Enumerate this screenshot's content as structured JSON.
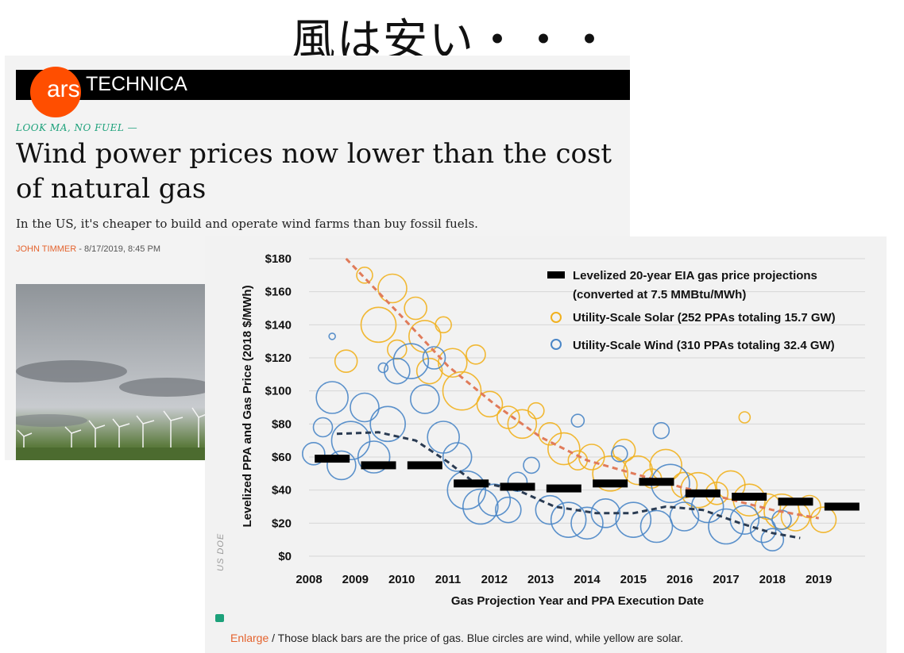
{
  "slide": {
    "title": "風は安い・・・"
  },
  "site": {
    "logo_ars": "ars",
    "logo_technica": "TECHNICA"
  },
  "article": {
    "kicker": "LOOK MA, NO FUEL —",
    "headline": "Wind power prices now lower than the cost of natural gas",
    "subhead": "In the US, it's cheaper to build and operate wind farms than buy fossil fuels.",
    "author": "JOHN TIMMER",
    "date": " - 8/17/2019, 8:45 PM"
  },
  "figure": {
    "credit": "US DOE",
    "enlarge": "Enlarge",
    "caption": " / Those black bars are the price of gas. Blue circles are wind, while yellow are solar."
  },
  "colors": {
    "solar": "#f1b11f",
    "wind": "#4a86c7",
    "gas": "#000000",
    "trend_solar": "#e07b5a",
    "trend_wind": "#2a3b52",
    "accent": "#ff4e00",
    "kicker": "#1ca17a"
  },
  "chart_data": {
    "type": "scatter",
    "ylabel": "Levelized PPA and Gas Price (2018 $/MWh)",
    "xlabel": "Gas Projection Year and PPA Execution Date",
    "x_ticks": [
      "2008",
      "2009",
      "2010",
      "2011",
      "2012",
      "2013",
      "2014",
      "2015",
      "2016",
      "2017",
      "2018",
      "2019"
    ],
    "y_ticks": [
      "$0",
      "$20",
      "$40",
      "$60",
      "$80",
      "$100",
      "$120",
      "$140",
      "$160",
      "$180"
    ],
    "xlim": [
      2008,
      2020
    ],
    "ylim": [
      0,
      180
    ],
    "legend_position": "top-right",
    "legend": [
      "Levelized 20-year EIA gas price projections",
      "(converted at 7.5 MMBtu/MWh)",
      "Utility-Scale Solar (252 PPAs totaling 15.7 GW)",
      "Utility-Scale Wind (310 PPAs totaling 32.4 GW)"
    ],
    "gas_bars": [
      {
        "x": 2008,
        "y": 59
      },
      {
        "x": 2009,
        "y": 55
      },
      {
        "x": 2010,
        "y": 55
      },
      {
        "x": 2011,
        "y": 44
      },
      {
        "x": 2012,
        "y": 42
      },
      {
        "x": 2013,
        "y": 41
      },
      {
        "x": 2014,
        "y": 44
      },
      {
        "x": 2015,
        "y": 45
      },
      {
        "x": 2016,
        "y": 38
      },
      {
        "x": 2017,
        "y": 36
      },
      {
        "x": 2018,
        "y": 33
      },
      {
        "x": 2019,
        "y": 30
      }
    ],
    "solar_trend": [
      [
        2008.8,
        180
      ],
      [
        2010,
        145
      ],
      [
        2011,
        115
      ],
      [
        2012,
        92
      ],
      [
        2013,
        72
      ],
      [
        2014,
        58
      ],
      [
        2015,
        50
      ],
      [
        2016,
        42
      ],
      [
        2017,
        35
      ],
      [
        2018,
        28
      ],
      [
        2019,
        23
      ]
    ],
    "wind_trend": [
      [
        2008.6,
        74
      ],
      [
        2009.5,
        75
      ],
      [
        2010.3,
        70
      ],
      [
        2011,
        57
      ],
      [
        2011.5,
        46
      ],
      [
        2012.5,
        40
      ],
      [
        2013.3,
        30
      ],
      [
        2014.2,
        26
      ],
      [
        2015,
        26
      ],
      [
        2015.7,
        30
      ],
      [
        2016.5,
        28
      ],
      [
        2017.3,
        20
      ],
      [
        2018,
        14
      ],
      [
        2018.6,
        11
      ]
    ],
    "solar_points": [
      {
        "x": 2008.8,
        "y": 118,
        "r": 14
      },
      {
        "x": 2009.2,
        "y": 170,
        "r": 10
      },
      {
        "x": 2009.5,
        "y": 140,
        "r": 22
      },
      {
        "x": 2009.8,
        "y": 162,
        "r": 18
      },
      {
        "x": 2009.9,
        "y": 125,
        "r": 12
      },
      {
        "x": 2010.3,
        "y": 150,
        "r": 14
      },
      {
        "x": 2010.5,
        "y": 133,
        "r": 20
      },
      {
        "x": 2010.6,
        "y": 112,
        "r": 16
      },
      {
        "x": 2010.9,
        "y": 140,
        "r": 10
      },
      {
        "x": 2011.1,
        "y": 117,
        "r": 18
      },
      {
        "x": 2011.3,
        "y": 100,
        "r": 24
      },
      {
        "x": 2011.6,
        "y": 122,
        "r": 12
      },
      {
        "x": 2011.9,
        "y": 92,
        "r": 16
      },
      {
        "x": 2012.3,
        "y": 84,
        "r": 14
      },
      {
        "x": 2012.6,
        "y": 80,
        "r": 18
      },
      {
        "x": 2012.9,
        "y": 88,
        "r": 10
      },
      {
        "x": 2013.2,
        "y": 74,
        "r": 14
      },
      {
        "x": 2013.5,
        "y": 65,
        "r": 20
      },
      {
        "x": 2013.8,
        "y": 58,
        "r": 12
      },
      {
        "x": 2014.1,
        "y": 60,
        "r": 16
      },
      {
        "x": 2014.5,
        "y": 50,
        "r": 22
      },
      {
        "x": 2014.8,
        "y": 64,
        "r": 14
      },
      {
        "x": 2015.1,
        "y": 52,
        "r": 18
      },
      {
        "x": 2015.4,
        "y": 47,
        "r": 12
      },
      {
        "x": 2015.7,
        "y": 55,
        "r": 20
      },
      {
        "x": 2016.1,
        "y": 43,
        "r": 16
      },
      {
        "x": 2016.4,
        "y": 40,
        "r": 22
      },
      {
        "x": 2016.8,
        "y": 38,
        "r": 14
      },
      {
        "x": 2017.1,
        "y": 43,
        "r": 18
      },
      {
        "x": 2017.4,
        "y": 84,
        "r": 7
      },
      {
        "x": 2017.5,
        "y": 34,
        "r": 20
      },
      {
        "x": 2017.9,
        "y": 30,
        "r": 16
      },
      {
        "x": 2018.2,
        "y": 27,
        "r": 22
      },
      {
        "x": 2018.5,
        "y": 24,
        "r": 18
      },
      {
        "x": 2018.8,
        "y": 30,
        "r": 14
      },
      {
        "x": 2019.1,
        "y": 22,
        "r": 16
      }
    ],
    "wind_points": [
      {
        "x": 2008.1,
        "y": 62,
        "r": 14
      },
      {
        "x": 2008.3,
        "y": 78,
        "r": 12
      },
      {
        "x": 2008.5,
        "y": 96,
        "r": 20
      },
      {
        "x": 2008.7,
        "y": 55,
        "r": 18
      },
      {
        "x": 2008.9,
        "y": 70,
        "r": 24
      },
      {
        "x": 2009.2,
        "y": 90,
        "r": 18
      },
      {
        "x": 2009.4,
        "y": 60,
        "r": 20
      },
      {
        "x": 2009.7,
        "y": 80,
        "r": 22
      },
      {
        "x": 2009.9,
        "y": 112,
        "r": 16
      },
      {
        "x": 2010.2,
        "y": 118,
        "r": 22
      },
      {
        "x": 2010.5,
        "y": 95,
        "r": 18
      },
      {
        "x": 2010.7,
        "y": 120,
        "r": 14
      },
      {
        "x": 2010.9,
        "y": 72,
        "r": 20
      },
      {
        "x": 2011.2,
        "y": 60,
        "r": 18
      },
      {
        "x": 2011.4,
        "y": 40,
        "r": 24
      },
      {
        "x": 2011.7,
        "y": 30,
        "r": 22
      },
      {
        "x": 2012.0,
        "y": 34,
        "r": 20
      },
      {
        "x": 2012.3,
        "y": 28,
        "r": 16
      },
      {
        "x": 2012.5,
        "y": 45,
        "r": 12
      },
      {
        "x": 2012.8,
        "y": 55,
        "r": 10
      },
      {
        "x": 2013.2,
        "y": 28,
        "r": 18
      },
      {
        "x": 2013.6,
        "y": 22,
        "r": 22
      },
      {
        "x": 2014.0,
        "y": 20,
        "r": 20
      },
      {
        "x": 2014.4,
        "y": 26,
        "r": 18
      },
      {
        "x": 2014.7,
        "y": 62,
        "r": 10
      },
      {
        "x": 2015.0,
        "y": 22,
        "r": 22
      },
      {
        "x": 2015.5,
        "y": 18,
        "r": 20
      },
      {
        "x": 2015.8,
        "y": 44,
        "r": 24
      },
      {
        "x": 2016.1,
        "y": 24,
        "r": 18
      },
      {
        "x": 2016.6,
        "y": 30,
        "r": 20
      },
      {
        "x": 2017.0,
        "y": 18,
        "r": 22
      },
      {
        "x": 2017.4,
        "y": 22,
        "r": 18
      },
      {
        "x": 2017.8,
        "y": 16,
        "r": 16
      },
      {
        "x": 2018.0,
        "y": 10,
        "r": 14
      },
      {
        "x": 2018.2,
        "y": 22,
        "r": 12
      },
      {
        "x": 2013.8,
        "y": 82,
        "r": 8
      },
      {
        "x": 2015.6,
        "y": 76,
        "r": 10
      },
      {
        "x": 2009.6,
        "y": 114,
        "r": 6
      },
      {
        "x": 2008.5,
        "y": 133,
        "r": 4
      }
    ]
  }
}
